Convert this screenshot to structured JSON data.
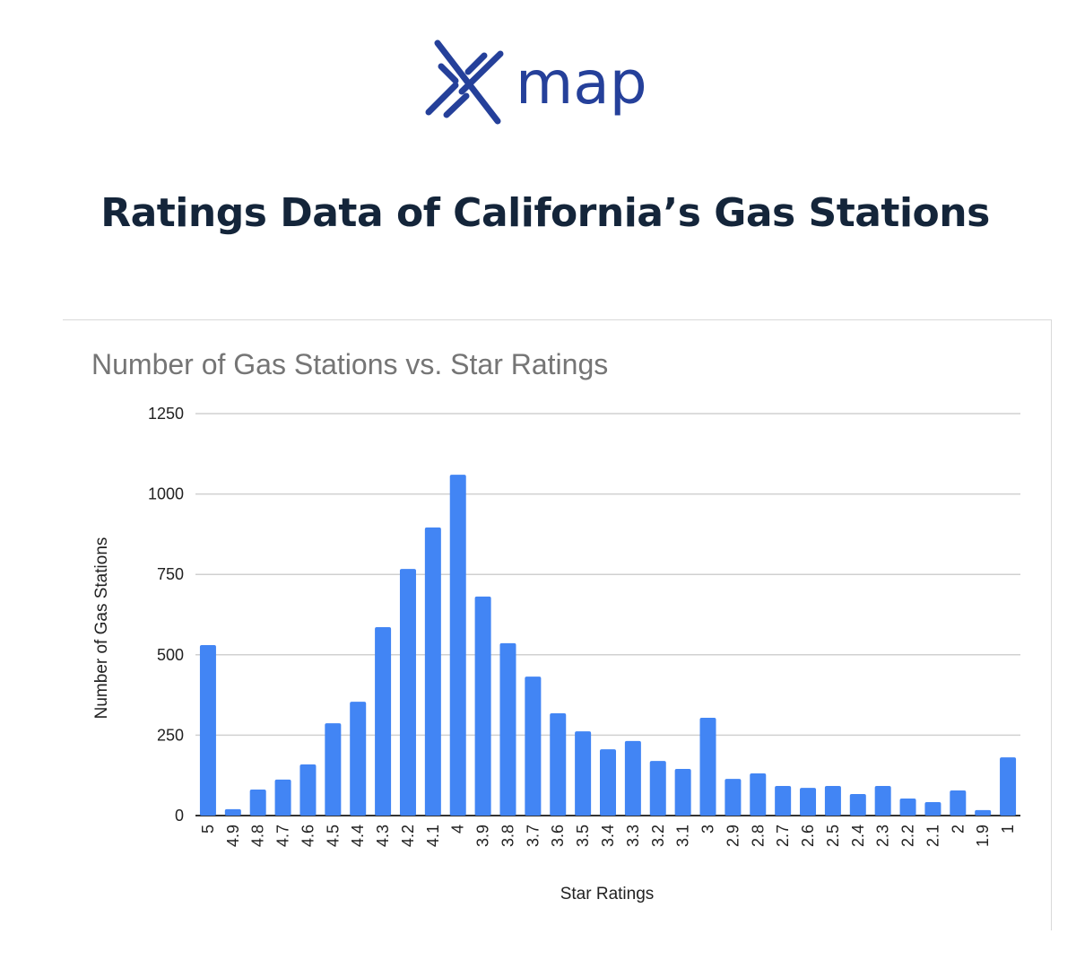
{
  "logo": {
    "text": "map",
    "color": "#25409a"
  },
  "page_title": "Ratings Data of California’s Gas Stations",
  "chart_data": {
    "type": "bar",
    "title": "Number of Gas Stations vs. Star Ratings",
    "xlabel": "Star Ratings",
    "ylabel": "Number of Gas Stations",
    "ylim": [
      0,
      1250
    ],
    "yticks": [
      0,
      250,
      500,
      750,
      1000,
      1250
    ],
    "grid": true,
    "bar_color": "#4285f4",
    "categories": [
      "5",
      "4.9",
      "4.8",
      "4.7",
      "4.6",
      "4.5",
      "4.4",
      "4.3",
      "4.2",
      "4.1",
      "4",
      "3.9",
      "3.8",
      "3.7",
      "3.6",
      "3.5",
      "3.4",
      "3.3",
      "3.2",
      "3.1",
      "3",
      "2.9",
      "2.8",
      "2.7",
      "2.6",
      "2.5",
      "2.4",
      "2.3",
      "2.2",
      "2.1",
      "2",
      "1.9",
      "1"
    ],
    "values": [
      530,
      20,
      81,
      112,
      159,
      287,
      354,
      586,
      767,
      896,
      1060,
      681,
      536,
      432,
      318,
      262,
      206,
      232,
      170,
      145,
      304,
      114,
      131,
      92,
      86,
      92,
      67,
      92,
      53,
      42,
      78,
      17,
      181
    ]
  }
}
